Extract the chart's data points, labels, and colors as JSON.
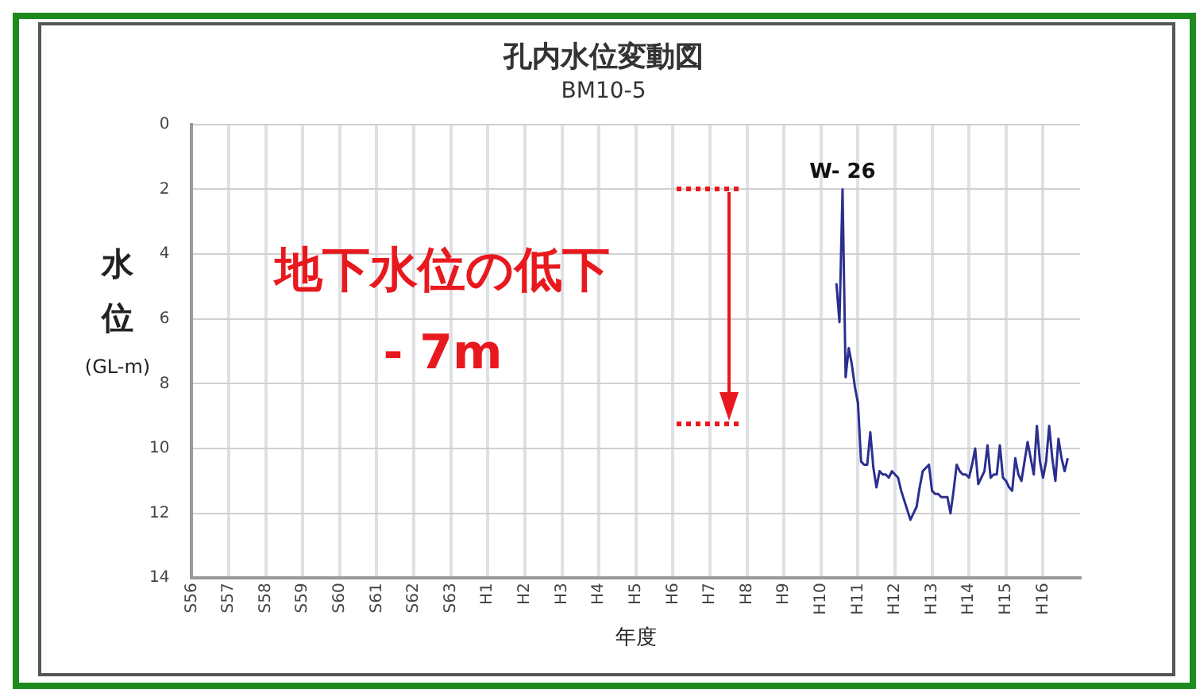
{
  "chart_data": {
    "type": "line",
    "title": "孔内水位変動図",
    "subtitle": "BM10-5",
    "xlabel": "年度",
    "ylabel": "水位(GL-m)",
    "categories": [
      "S56",
      null,
      null,
      null,
      null,
      null,
      null,
      null,
      null,
      null,
      null,
      null,
      "S57",
      null,
      null,
      null,
      null,
      null,
      null,
      null,
      null,
      null,
      null,
      null,
      "S58",
      null,
      null,
      null,
      null,
      null,
      null,
      null,
      null,
      null,
      null,
      null,
      "S59",
      null,
      null,
      null,
      null,
      null,
      null,
      null,
      null,
      null,
      null,
      null,
      "S60",
      null,
      null,
      null,
      null,
      null,
      null,
      null,
      null,
      null,
      null,
      null,
      "S61",
      null,
      null,
      null,
      null,
      null,
      null,
      null,
      null,
      null,
      null,
      null,
      "S62",
      null,
      null,
      null,
      null,
      null,
      null,
      null,
      null,
      null,
      null,
      null,
      "S63",
      null,
      null,
      null,
      null,
      null,
      null,
      null,
      null,
      null,
      null,
      null,
      "H1",
      null,
      null,
      null,
      null,
      null,
      null,
      null,
      null,
      null,
      null,
      null,
      "H2",
      null,
      null,
      null,
      null,
      null,
      null,
      null,
      null,
      null,
      null,
      null,
      "H3",
      null,
      null,
      null,
      null,
      null,
      null,
      null,
      null,
      null,
      null,
      null,
      "H4",
      null,
      null,
      null,
      null,
      null,
      null,
      null,
      null,
      null,
      null,
      null,
      "H5",
      null,
      null,
      null,
      null,
      null,
      null,
      null,
      null,
      null,
      null,
      null,
      "H6",
      null,
      null,
      null,
      null,
      null,
      null,
      null,
      null,
      null,
      null,
      null,
      "H7",
      null,
      null,
      null,
      null,
      null,
      null,
      null,
      null,
      null,
      null,
      null,
      "H8",
      null,
      null,
      null,
      null,
      null,
      null,
      null,
      null,
      null,
      null,
      null,
      "H9",
      null,
      null,
      null,
      null,
      null,
      null,
      null,
      null,
      null,
      null,
      null,
      "H10",
      null,
      null,
      null,
      null,
      null,
      null,
      null,
      null,
      null,
      null,
      null,
      "H11",
      null,
      null,
      null,
      null,
      null,
      null,
      null,
      null,
      null,
      null,
      null,
      "H12",
      null,
      null,
      null,
      null,
      null,
      null,
      null,
      null,
      null,
      null,
      null,
      "H13",
      null,
      null,
      null,
      null,
      null,
      null,
      null,
      null,
      null,
      null,
      null,
      "H14",
      null,
      null,
      null,
      null,
      null,
      null,
      null,
      null,
      null,
      null,
      null,
      "H15",
      null,
      null,
      null,
      null,
      null,
      null,
      null,
      null,
      null,
      null,
      null,
      "H16",
      null,
      null,
      null,
      null,
      null,
      null,
      null,
      null,
      null,
      null,
      null,
      null
    ],
    "ylim": [
      14,
      0
    ],
    "yticks": [
      0,
      2,
      4,
      6,
      8,
      10,
      12,
      14
    ],
    "grid": true,
    "marker": "none",
    "line_style": "solid",
    "series": [
      {
        "color": "#2b2f8f",
        "values": [
          null,
          null,
          null,
          null,
          null,
          null,
          null,
          null,
          null,
          null,
          null,
          null,
          null,
          null,
          null,
          null,
          null,
          null,
          null,
          null,
          null,
          null,
          null,
          null,
          null,
          null,
          null,
          null,
          null,
          null,
          null,
          null,
          null,
          null,
          null,
          null,
          null,
          null,
          null,
          null,
          null,
          null,
          null,
          null,
          null,
          null,
          null,
          null,
          null,
          null,
          null,
          null,
          null,
          null,
          null,
          null,
          null,
          null,
          null,
          null,
          null,
          null,
          null,
          null,
          null,
          null,
          null,
          null,
          null,
          null,
          null,
          null,
          null,
          null,
          null,
          null,
          null,
          null,
          null,
          null,
          null,
          null,
          null,
          null,
          null,
          null,
          null,
          null,
          null,
          null,
          null,
          null,
          null,
          null,
          null,
          null,
          null,
          null,
          null,
          null,
          null,
          null,
          null,
          null,
          null,
          null,
          null,
          null,
          null,
          null,
          null,
          null,
          null,
          null,
          null,
          null,
          null,
          null,
          null,
          null,
          null,
          null,
          null,
          null,
          null,
          null,
          null,
          null,
          null,
          null,
          null,
          null,
          null,
          null,
          null,
          null,
          null,
          null,
          null,
          null,
          null,
          null,
          null,
          null,
          null,
          null,
          null,
          null,
          null,
          null,
          null,
          null,
          null,
          null,
          null,
          null,
          null,
          null,
          null,
          null,
          null,
          null,
          null,
          null,
          null,
          null,
          null,
          null,
          null,
          null,
          null,
          null,
          null,
          null,
          null,
          null,
          null,
          null,
          null,
          null,
          null,
          null,
          null,
          null,
          null,
          null,
          null,
          null,
          null,
          null,
          null,
          null,
          null,
          null,
          null,
          null,
          null,
          null,
          null,
          null,
          null,
          null,
          null,
          null,
          null,
          null,
          null,
          null,
          null,
          4.9,
          6.1,
          2.0,
          7.8,
          6.9,
          7.4,
          8.1,
          8.6,
          10.4,
          10.5,
          10.5,
          9.5,
          10.6,
          11.2,
          10.7,
          10.8,
          10.8,
          10.9,
          10.7,
          10.8,
          10.9,
          11.3,
          11.6,
          11.9,
          12.2,
          12.0,
          11.8,
          11.2,
          10.7,
          10.6,
          10.5,
          11.3,
          11.4,
          11.4,
          11.5,
          11.5,
          11.5,
          12.0,
          11.3,
          10.5,
          10.7,
          10.8,
          10.8,
          10.9,
          10.5,
          10.0,
          11.1,
          10.9,
          10.7,
          9.9,
          10.9,
          10.8,
          10.8,
          9.9,
          10.9,
          11.0,
          11.2,
          11.3,
          10.3,
          10.8,
          11.0,
          10.4,
          9.8,
          10.3,
          10.8,
          9.3,
          10.4,
          10.9,
          10.4,
          9.3,
          10.3,
          11.0,
          9.7,
          10.3,
          10.7,
          10.3,
          null,
          null,
          null,
          null
        ]
      }
    ],
    "annotations": [
      {
        "text": "W- 26",
        "y": 2.0
      },
      "地下水位の低下",
      "- 7m"
    ]
  }
}
